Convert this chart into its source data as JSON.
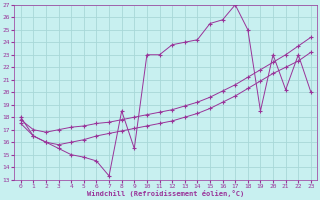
{
  "xlabel": "Windchill (Refroidissement éolien,°C)",
  "bg_color": "#c8f0f0",
  "grid_color": "#a8d8d8",
  "line_color": "#993399",
  "xlim": [
    -0.5,
    23.5
  ],
  "ylim": [
    13,
    27
  ],
  "xticks": [
    0,
    1,
    2,
    3,
    4,
    5,
    6,
    7,
    8,
    9,
    10,
    11,
    12,
    13,
    14,
    15,
    16,
    17,
    18,
    19,
    20,
    21,
    22,
    23
  ],
  "yticks": [
    13,
    14,
    15,
    16,
    17,
    18,
    19,
    20,
    21,
    22,
    23,
    24,
    25,
    26,
    27
  ],
  "series1_x": [
    0,
    1,
    2,
    3,
    4,
    5,
    6,
    7,
    8,
    9,
    10,
    11,
    12,
    13,
    14,
    15,
    16,
    17,
    18,
    19,
    20,
    21,
    22,
    23
  ],
  "series1_y": [
    18.0,
    16.5,
    16.0,
    15.5,
    15.0,
    14.8,
    14.5,
    13.3,
    18.5,
    15.5,
    23.0,
    23.0,
    23.8,
    24.0,
    24.2,
    25.5,
    25.8,
    27.0,
    25.0,
    18.5,
    23.0,
    20.2,
    23.0,
    20.0
  ],
  "series2_x": [
    0,
    1,
    2,
    3,
    4,
    5,
    6,
    7,
    8,
    9,
    10,
    11,
    12,
    13,
    14,
    15,
    16,
    17,
    18,
    19,
    20,
    21,
    22,
    23
  ],
  "series2_y": [
    17.8,
    17.0,
    16.8,
    17.0,
    17.2,
    17.3,
    17.5,
    17.6,
    17.8,
    18.0,
    18.2,
    18.4,
    18.6,
    18.9,
    19.2,
    19.6,
    20.1,
    20.6,
    21.2,
    21.8,
    22.4,
    23.0,
    23.7,
    24.4
  ],
  "series3_x": [
    0,
    1,
    2,
    3,
    4,
    5,
    6,
    7,
    8,
    9,
    10,
    11,
    12,
    13,
    14,
    15,
    16,
    17,
    18,
    19,
    20,
    21,
    22,
    23
  ],
  "series3_y": [
    17.5,
    16.5,
    16.0,
    15.8,
    16.0,
    16.2,
    16.5,
    16.7,
    16.9,
    17.1,
    17.3,
    17.5,
    17.7,
    18.0,
    18.3,
    18.7,
    19.2,
    19.7,
    20.3,
    20.9,
    21.5,
    22.0,
    22.5,
    23.2
  ]
}
